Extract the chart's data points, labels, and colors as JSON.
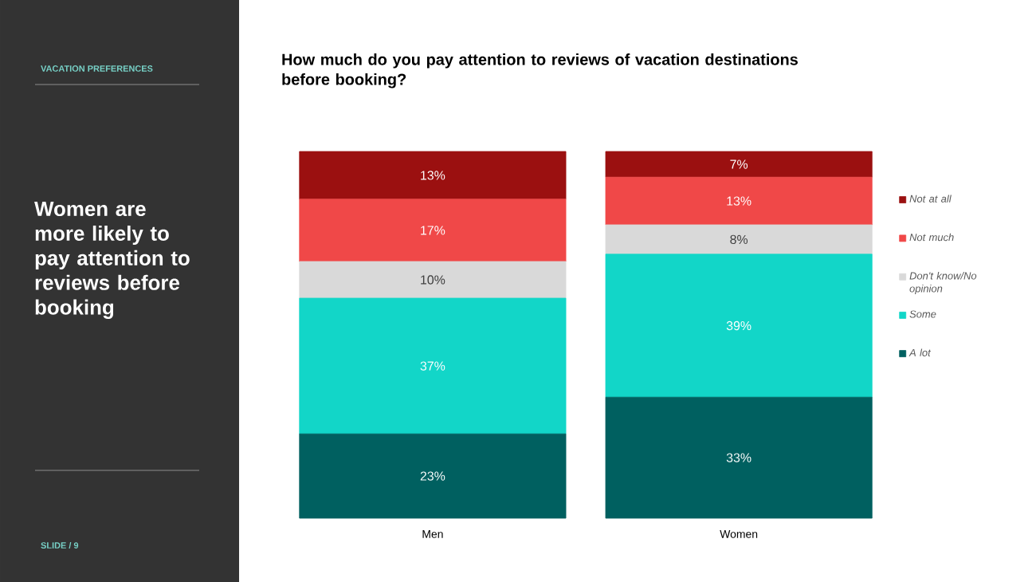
{
  "chart_data": {
    "type": "bar",
    "stacked": true,
    "title": "How much do you pay attention to reviews of vacation destinations before booking?",
    "subtitle": "Women are more likely to pay attention to reviews before booking",
    "annotations": [
      "VACATION PREFERENCES",
      "SLIDE /  9"
    ],
    "categories": [
      "Men",
      "Women"
    ],
    "series": [
      {
        "name": "A lot",
        "color": "#006060",
        "values": [
          23,
          33
        ],
        "value_labels": [
          "23%",
          "33%"
        ]
      },
      {
        "name": "Some",
        "color": "#12d6c8",
        "values": [
          37,
          39
        ],
        "value_labels": [
          "37%",
          "39%"
        ]
      },
      {
        "name": "Don't know/No opinion",
        "color": "#d9d9d9",
        "values": [
          10,
          8
        ],
        "value_labels": [
          "10%",
          "8%"
        ]
      },
      {
        "name": "Not much",
        "color": "#f04848",
        "values": [
          17,
          13
        ],
        "value_labels": [
          "17%",
          "13%"
        ]
      },
      {
        "name": "Not at all",
        "color": "#9b1010",
        "values": [
          13,
          7
        ],
        "value_labels": [
          "13%",
          "7%"
        ]
      }
    ],
    "legend": "right",
    "tick_labels": "x"
  }
}
